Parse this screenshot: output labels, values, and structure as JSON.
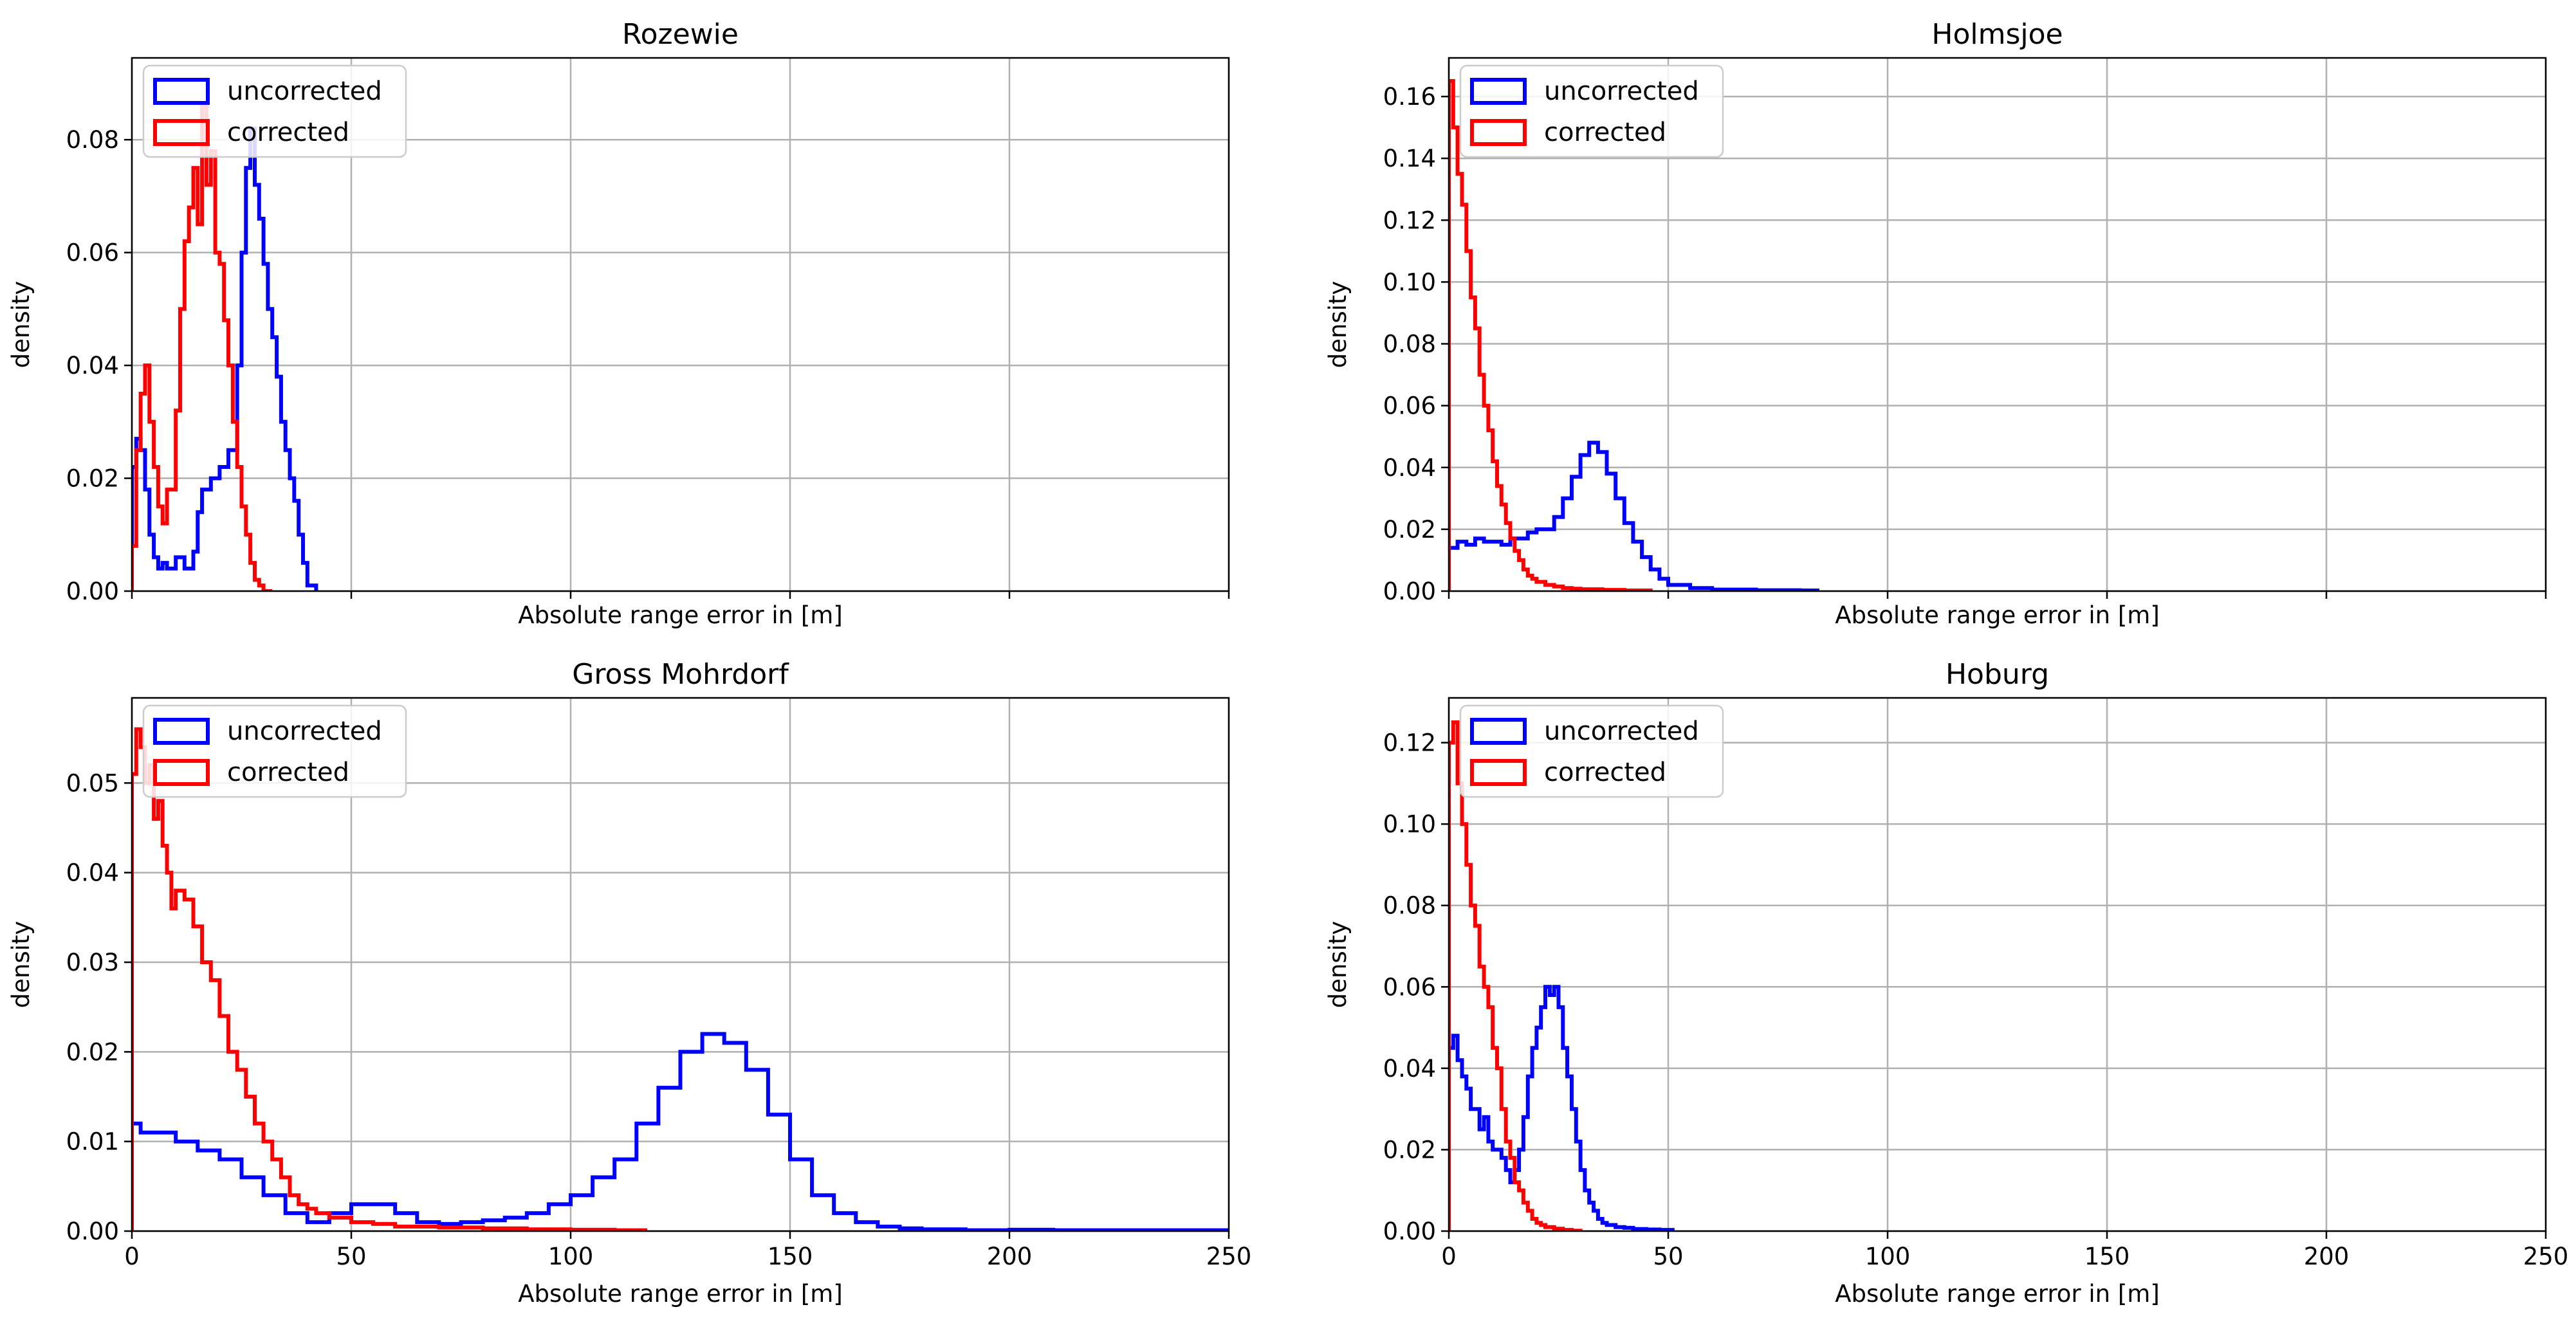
{
  "figure": {
    "subplots": [
      {
        "id": "rozewie",
        "title": "Rozewie",
        "xlabel": "Absolute range error in [m]",
        "ylabel": "density",
        "xlim": [
          0,
          250
        ],
        "ylim": [
          0,
          0.0945
        ],
        "xticks": [
          0,
          50,
          100,
          150,
          200,
          250
        ],
        "show_xticklabels": false,
        "yticks": [
          0.0,
          0.02,
          0.04,
          0.06,
          0.08
        ],
        "ytick_labels": [
          "0.00",
          "0.02",
          "0.04",
          "0.06",
          "0.08"
        ]
      },
      {
        "id": "holmsjoe",
        "title": "Holmsjoe",
        "xlabel": "Absolute range error in [m]",
        "ylabel": "density",
        "xlim": [
          0,
          250
        ],
        "ylim": [
          0,
          0.1725
        ],
        "xticks": [
          0,
          50,
          100,
          150,
          200,
          250
        ],
        "show_xticklabels": false,
        "yticks": [
          0.0,
          0.02,
          0.04,
          0.06,
          0.08,
          0.1,
          0.12,
          0.14,
          0.16
        ],
        "ytick_labels": [
          "0.00",
          "0.02",
          "0.04",
          "0.06",
          "0.08",
          "0.10",
          "0.12",
          "0.14",
          "0.16"
        ]
      },
      {
        "id": "gross-mohrdorf",
        "title": "Gross Mohrdorf",
        "xlabel": "Absolute range error in [m]",
        "ylabel": "density",
        "xlim": [
          0,
          250
        ],
        "ylim": [
          0,
          0.0595
        ],
        "xticks": [
          0,
          50,
          100,
          150,
          200,
          250
        ],
        "show_xticklabels": true,
        "xtick_labels": [
          "0",
          "50",
          "100",
          "150",
          "200",
          "250"
        ],
        "yticks": [
          0.0,
          0.01,
          0.02,
          0.03,
          0.04,
          0.05
        ],
        "ytick_labels": [
          "0.00",
          "0.01",
          "0.02",
          "0.03",
          "0.04",
          "0.05"
        ]
      },
      {
        "id": "hoburg",
        "title": "Hoburg",
        "xlabel": "Absolute range error in [m]",
        "ylabel": "density",
        "xlim": [
          0,
          250
        ],
        "ylim": [
          0,
          0.131
        ],
        "xticks": [
          0,
          50,
          100,
          150,
          200,
          250
        ],
        "show_xticklabels": true,
        "xtick_labels": [
          "0",
          "50",
          "100",
          "150",
          "200",
          "250"
        ],
        "yticks": [
          0.0,
          0.02,
          0.04,
          0.06,
          0.08,
          0.1,
          0.12
        ],
        "ytick_labels": [
          "0.00",
          "0.02",
          "0.04",
          "0.06",
          "0.08",
          "0.10",
          "0.12"
        ]
      }
    ]
  },
  "legend": {
    "placement": "upper-left",
    "entries": [
      {
        "label": "uncorrected",
        "color": "#0000ff"
      },
      {
        "label": "corrected",
        "color": "#ff0000"
      }
    ]
  },
  "chart_data": [
    {
      "type": "line",
      "title": "Rozewie",
      "xlabel": "Absolute range error in [m]",
      "ylabel": "density",
      "xlim": [
        0,
        250
      ],
      "ylim": [
        0,
        0.0945
      ],
      "series": [
        {
          "name": "uncorrected",
          "color": "#0000ff",
          "x": [
            0,
            1,
            2,
            3,
            4,
            5,
            6,
            7,
            8,
            10,
            12,
            14,
            15,
            16,
            18,
            20,
            22,
            24,
            25,
            26,
            27,
            28,
            29,
            30,
            31,
            32,
            33,
            34,
            35,
            36,
            37,
            38,
            39,
            40,
            42
          ],
          "y": [
            0.022,
            0.027,
            0.025,
            0.018,
            0.01,
            0.006,
            0.004,
            0.005,
            0.004,
            0.006,
            0.004,
            0.007,
            0.014,
            0.018,
            0.02,
            0.022,
            0.025,
            0.04,
            0.06,
            0.075,
            0.082,
            0.072,
            0.066,
            0.058,
            0.05,
            0.045,
            0.038,
            0.03,
            0.025,
            0.02,
            0.016,
            0.01,
            0.005,
            0.001,
            0
          ]
        },
        {
          "name": "corrected",
          "color": "#ff0000",
          "x": [
            0,
            1,
            2,
            3,
            4,
            5,
            6,
            7,
            8,
            10,
            11,
            12,
            13,
            14,
            15,
            16,
            17,
            18,
            19,
            20,
            21,
            22,
            23,
            24,
            25,
            26,
            27,
            28,
            29,
            30,
            32
          ],
          "y": [
            0.008,
            0.025,
            0.035,
            0.04,
            0.03,
            0.022,
            0.015,
            0.012,
            0.018,
            0.032,
            0.05,
            0.062,
            0.068,
            0.075,
            0.065,
            0.086,
            0.072,
            0.078,
            0.06,
            0.058,
            0.048,
            0.04,
            0.03,
            0.022,
            0.015,
            0.01,
            0.005,
            0.002,
            0.001,
            0,
            0
          ]
        }
      ]
    },
    {
      "type": "line",
      "title": "Holmsjoe",
      "xlabel": "Absolute range error in [m]",
      "ylabel": "density",
      "xlim": [
        0,
        250
      ],
      "ylim": [
        0,
        0.1725
      ],
      "series": [
        {
          "name": "uncorrected",
          "color": "#0000ff",
          "x": [
            0,
            2,
            4,
            6,
            8,
            10,
            12,
            14,
            16,
            18,
            20,
            22,
            24,
            26,
            28,
            30,
            32,
            34,
            36,
            38,
            40,
            42,
            44,
            46,
            48,
            50,
            55,
            60,
            70,
            80,
            84
          ],
          "y": [
            0.014,
            0.016,
            0.015,
            0.017,
            0.016,
            0.016,
            0.015,
            0.017,
            0.017,
            0.019,
            0.02,
            0.02,
            0.024,
            0.03,
            0.037,
            0.044,
            0.048,
            0.045,
            0.038,
            0.03,
            0.022,
            0.016,
            0.011,
            0.007,
            0.004,
            0.002,
            0.001,
            0.0005,
            0.0003,
            0.0002,
            0
          ]
        },
        {
          "name": "corrected",
          "color": "#ff0000",
          "x": [
            0,
            1,
            2,
            3,
            4,
            5,
            6,
            7,
            8,
            9,
            10,
            11,
            12,
            13,
            14,
            15,
            16,
            17,
            18,
            19,
            20,
            22,
            24,
            26,
            28,
            30,
            35,
            40,
            46
          ],
          "y": [
            0.165,
            0.15,
            0.135,
            0.125,
            0.11,
            0.095,
            0.085,
            0.07,
            0.06,
            0.052,
            0.042,
            0.034,
            0.028,
            0.022,
            0.017,
            0.013,
            0.01,
            0.007,
            0.005,
            0.004,
            0.003,
            0.002,
            0.0015,
            0.001,
            0.0008,
            0.0006,
            0.0004,
            0.0002,
            0
          ]
        }
      ]
    },
    {
      "type": "line",
      "title": "Gross Mohrdorf",
      "xlabel": "Absolute range error in [m]",
      "ylabel": "density",
      "xlim": [
        0,
        250
      ],
      "ylim": [
        0,
        0.0595
      ],
      "series": [
        {
          "name": "uncorrected",
          "color": "#0000ff",
          "x": [
            0,
            2,
            5,
            10,
            15,
            20,
            25,
            30,
            35,
            40,
            45,
            50,
            55,
            60,
            65,
            70,
            75,
            80,
            85,
            90,
            95,
            100,
            105,
            110,
            115,
            120,
            125,
            130,
            135,
            140,
            145,
            150,
            155,
            160,
            165,
            170,
            175,
            180,
            190,
            200,
            210,
            220,
            250
          ],
          "y": [
            0.012,
            0.011,
            0.011,
            0.01,
            0.009,
            0.008,
            0.006,
            0.004,
            0.002,
            0.001,
            0.002,
            0.003,
            0.003,
            0.002,
            0.001,
            0.0008,
            0.001,
            0.0012,
            0.0015,
            0.002,
            0.003,
            0.004,
            0.006,
            0.008,
            0.012,
            0.016,
            0.02,
            0.022,
            0.021,
            0.018,
            0.013,
            0.008,
            0.004,
            0.002,
            0.001,
            0.0005,
            0.0003,
            0.0002,
            0.0001,
            0.00015,
            0.0001,
            0.0001,
            0.0001
          ]
        },
        {
          "name": "corrected",
          "color": "#ff0000",
          "x": [
            0,
            1,
            2,
            3,
            4,
            5,
            6,
            7,
            8,
            9,
            10,
            12,
            14,
            16,
            18,
            20,
            22,
            24,
            26,
            28,
            30,
            32,
            34,
            36,
            38,
            40,
            42,
            45,
            50,
            55,
            60,
            70,
            80,
            90,
            100,
            110,
            117
          ],
          "y": [
            0.051,
            0.056,
            0.054,
            0.05,
            0.052,
            0.046,
            0.048,
            0.043,
            0.04,
            0.036,
            0.038,
            0.037,
            0.034,
            0.03,
            0.028,
            0.024,
            0.02,
            0.018,
            0.015,
            0.012,
            0.01,
            0.008,
            0.006,
            0.004,
            0.003,
            0.0025,
            0.002,
            0.0015,
            0.001,
            0.0008,
            0.0005,
            0.0004,
            0.0003,
            0.0002,
            0.00015,
            0.0001,
            0
          ]
        }
      ]
    },
    {
      "type": "line",
      "title": "Hoburg",
      "xlabel": "Absolute range error in [m]",
      "ylabel": "density",
      "xlim": [
        0,
        250
      ],
      "ylim": [
        0,
        0.131
      ],
      "series": [
        {
          "name": "uncorrected",
          "color": "#0000ff",
          "x": [
            0,
            1,
            2,
            3,
            4,
            5,
            6,
            7,
            8,
            9,
            10,
            11,
            12,
            13,
            14,
            15,
            16,
            17,
            18,
            19,
            20,
            21,
            22,
            23,
            24,
            25,
            26,
            27,
            28,
            29,
            30,
            31,
            32,
            33,
            34,
            35,
            36,
            38,
            40,
            42,
            45,
            48,
            51
          ],
          "y": [
            0.045,
            0.048,
            0.042,
            0.038,
            0.035,
            0.03,
            0.03,
            0.025,
            0.028,
            0.022,
            0.02,
            0.02,
            0.018,
            0.015,
            0.012,
            0.015,
            0.02,
            0.028,
            0.038,
            0.045,
            0.05,
            0.055,
            0.06,
            0.058,
            0.06,
            0.055,
            0.045,
            0.038,
            0.03,
            0.022,
            0.015,
            0.01,
            0.007,
            0.005,
            0.003,
            0.002,
            0.0015,
            0.001,
            0.0008,
            0.0005,
            0.0004,
            0.0003,
            0
          ]
        },
        {
          "name": "corrected",
          "color": "#ff0000",
          "x": [
            0,
            1,
            2,
            3,
            4,
            5,
            6,
            7,
            8,
            9,
            10,
            11,
            12,
            13,
            14,
            15,
            16,
            17,
            18,
            19,
            20,
            21,
            22,
            24,
            26,
            28,
            30
          ],
          "y": [
            0.12,
            0.125,
            0.11,
            0.1,
            0.09,
            0.08,
            0.075,
            0.065,
            0.06,
            0.055,
            0.045,
            0.04,
            0.03,
            0.022,
            0.018,
            0.012,
            0.01,
            0.007,
            0.005,
            0.003,
            0.002,
            0.0015,
            0.001,
            0.0006,
            0.0003,
            0.0001,
            0
          ]
        }
      ]
    }
  ]
}
